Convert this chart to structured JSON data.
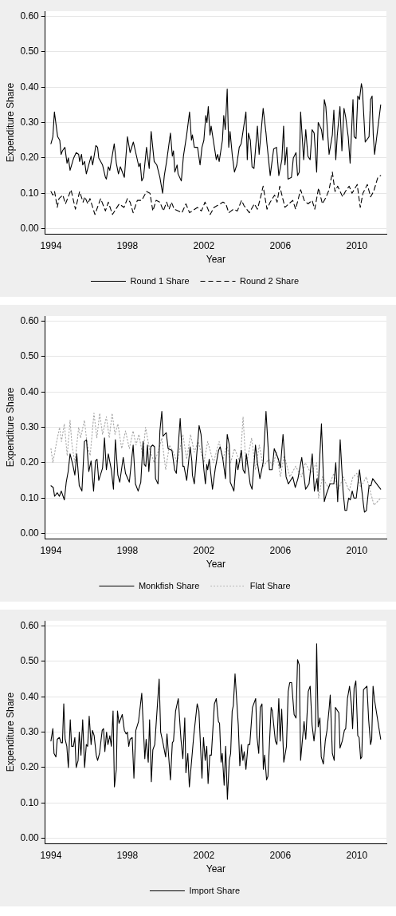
{
  "chart_data": [
    {
      "type": "line",
      "xlabel": "Year",
      "ylabel": "Expenditure Share",
      "legend": "bottom",
      "grid": "y",
      "marker": "none",
      "xlim": [
        1993.7,
        2011.55
      ],
      "xticks": [
        1994,
        1998,
        2002,
        2006,
        2010
      ],
      "ylim": [
        -0.015,
        0.615
      ],
      "yticks": [
        {
          "value": 0,
          "label": "0.00"
        },
        {
          "value": 0.1,
          "label": "0.10"
        },
        {
          "value": 0.2,
          "label": "0.20"
        },
        {
          "value": 0.3,
          "label": "0.30"
        },
        {
          "value": 0.4,
          "label": "0.40"
        },
        {
          "value": 0.5,
          "label": "0.50"
        },
        {
          "value": 0.6,
          "label": "0.60"
        }
      ],
      "series": [
        {
          "name": "Round 1 Share",
          "color": "#000000",
          "line_style": "solid",
          "x": [
            1994.0,
            1994.1,
            1994.18,
            1994.35,
            1994.46,
            1994.53,
            1994.6,
            1994.73,
            1994.84,
            1994.91,
            1995.0,
            1995.19,
            1995.32,
            1995.45,
            1995.5,
            1995.6,
            1995.66,
            1995.76,
            1995.85,
            1996.1,
            1996.18,
            1996.35,
            1996.44,
            1996.5,
            1996.7,
            1996.85,
            1996.9,
            1997.0,
            1997.08,
            1997.31,
            1997.42,
            1997.53,
            1997.63,
            1997.84,
            1998.0,
            1998.14,
            1998.31,
            1998.6,
            1998.67,
            1998.75,
            1998.84,
            1999.0,
            1999.14,
            1999.24,
            1999.4,
            1999.54,
            1999.7,
            1999.84,
            1999.93,
            2000.05,
            2000.25,
            2000.35,
            2000.41,
            2000.48,
            2000.6,
            2000.65,
            2000.82,
            2000.93,
            2001.1,
            2001.25,
            2001.35,
            2001.4,
            2001.5,
            2001.67,
            2001.8,
            2001.9,
            2002.0,
            2002.1,
            2002.16,
            2002.23,
            2002.32,
            2002.38,
            2002.65,
            2002.72,
            2002.8,
            2002.97,
            2003.04,
            2003.12,
            2003.22,
            2003.3,
            2003.37,
            2003.49,
            2003.6,
            2003.72,
            2003.85,
            2003.95,
            2004.2,
            2004.27,
            2004.33,
            2004.43,
            2004.52,
            2004.62,
            2004.8,
            2004.89,
            2005.1,
            2005.25,
            2005.3,
            2005.47,
            2005.65,
            2005.8,
            2005.92,
            2006.08,
            2006.17,
            2006.24,
            2006.34,
            2006.4,
            2006.58,
            2006.68,
            2006.82,
            2006.9,
            2006.99,
            2007.06,
            2007.22,
            2007.33,
            2007.44,
            2007.56,
            2007.66,
            2007.77,
            2007.9,
            2007.98,
            2008.15,
            2008.23,
            2008.3,
            2008.38,
            2008.55,
            2008.72,
            2008.8,
            2008.9,
            2008.98,
            2009.12,
            2009.22,
            2009.33,
            2009.42,
            2009.55,
            2009.65,
            2009.8,
            2009.86,
            2009.96,
            2010.05,
            2010.14,
            2010.24,
            2010.29,
            2010.44,
            2010.64,
            2010.72,
            2010.8,
            2010.86,
            2010.93,
            2011.25
          ],
          "values": [
            0.24,
            0.26,
            0.33,
            0.26,
            0.25,
            0.21,
            0.22,
            0.23,
            0.185,
            0.2,
            0.165,
            0.2,
            0.215,
            0.21,
            0.19,
            0.21,
            0.18,
            0.19,
            0.155,
            0.205,
            0.18,
            0.235,
            0.23,
            0.2,
            0.18,
            0.145,
            0.14,
            0.175,
            0.165,
            0.24,
            0.185,
            0.155,
            0.175,
            0.145,
            0.26,
            0.215,
            0.245,
            0.175,
            0.185,
            0.135,
            0.145,
            0.23,
            0.17,
            0.275,
            0.19,
            0.18,
            0.145,
            0.1,
            0.15,
            0.19,
            0.27,
            0.205,
            0.22,
            0.16,
            0.18,
            0.155,
            0.135,
            0.205,
            0.265,
            0.33,
            0.25,
            0.265,
            0.23,
            0.23,
            0.18,
            0.23,
            0.25,
            0.32,
            0.3,
            0.345,
            0.265,
            0.29,
            0.195,
            0.21,
            0.19,
            0.25,
            0.32,
            0.28,
            0.395,
            0.23,
            0.275,
            0.205,
            0.16,
            0.18,
            0.23,
            0.24,
            0.33,
            0.195,
            0.27,
            0.25,
            0.175,
            0.17,
            0.29,
            0.21,
            0.34,
            0.27,
            0.24,
            0.15,
            0.225,
            0.23,
            0.15,
            0.195,
            0.29,
            0.18,
            0.23,
            0.14,
            0.145,
            0.2,
            0.215,
            0.15,
            0.16,
            0.33,
            0.195,
            0.28,
            0.205,
            0.195,
            0.28,
            0.27,
            0.16,
            0.3,
            0.28,
            0.25,
            0.365,
            0.345,
            0.21,
            0.265,
            0.335,
            0.195,
            0.265,
            0.345,
            0.22,
            0.34,
            0.315,
            0.26,
            0.185,
            0.365,
            0.26,
            0.255,
            0.375,
            0.365,
            0.41,
            0.395,
            0.245,
            0.26,
            0.365,
            0.375,
            0.265,
            0.21,
            0.35
          ]
        },
        {
          "name": "Round 2 Share",
          "color": "#000000",
          "line_style": "dashed",
          "x": [
            1994.0,
            1994.1,
            1994.19,
            1994.33,
            1994.42,
            1994.62,
            1994.76,
            1995.05,
            1995.28,
            1995.5,
            1995.68,
            1995.77,
            1995.93,
            1996.04,
            1996.3,
            1996.6,
            1996.85,
            1997.0,
            1997.22,
            1997.57,
            1997.82,
            1998.0,
            1998.14,
            1998.3,
            1998.52,
            1998.75,
            1999.0,
            1999.18,
            1999.33,
            1999.5,
            1999.7,
            1999.88,
            2000.05,
            2000.18,
            2000.3,
            2000.45,
            2000.85,
            2001.06,
            2001.25,
            2001.66,
            2001.87,
            2002.06,
            2002.33,
            2002.53,
            2003.0,
            2003.15,
            2003.3,
            2003.55,
            2003.75,
            2003.97,
            2004.1,
            2004.38,
            2004.64,
            2004.8,
            2004.95,
            2005.1,
            2005.3,
            2005.47,
            2005.7,
            2005.83,
            2005.97,
            2006.24,
            2006.44,
            2006.65,
            2006.8,
            2007.06,
            2007.25,
            2007.45,
            2007.66,
            2007.8,
            2008.0,
            2008.2,
            2008.4,
            2008.55,
            2008.72,
            2008.86,
            2009.0,
            2009.26,
            2009.4,
            2009.6,
            2009.75,
            2010.02,
            2010.18,
            2010.32,
            2010.55,
            2010.72,
            2010.88,
            2011.1,
            2011.25
          ],
          "values": [
            0.105,
            0.095,
            0.105,
            0.06,
            0.085,
            0.095,
            0.07,
            0.11,
            0.055,
            0.105,
            0.075,
            0.09,
            0.07,
            0.085,
            0.04,
            0.085,
            0.05,
            0.075,
            0.04,
            0.07,
            0.06,
            0.085,
            0.075,
            0.045,
            0.08,
            0.08,
            0.105,
            0.1,
            0.05,
            0.08,
            0.075,
            0.05,
            0.075,
            0.055,
            0.075,
            0.055,
            0.045,
            0.07,
            0.045,
            0.06,
            0.05,
            0.075,
            0.04,
            0.06,
            0.075,
            0.07,
            0.045,
            0.055,
            0.05,
            0.08,
            0.065,
            0.045,
            0.07,
            0.055,
            0.085,
            0.12,
            0.055,
            0.075,
            0.095,
            0.075,
            0.12,
            0.06,
            0.07,
            0.08,
            0.055,
            0.11,
            0.08,
            0.07,
            0.08,
            0.055,
            0.115,
            0.07,
            0.09,
            0.11,
            0.16,
            0.105,
            0.12,
            0.09,
            0.105,
            0.12,
            0.1,
            0.125,
            0.06,
            0.1,
            0.125,
            0.09,
            0.105,
            0.145,
            0.15
          ]
        }
      ]
    },
    {
      "type": "line",
      "xlabel": "Year",
      "ylabel": "Expenditure Share",
      "legend": "bottom",
      "grid": "y",
      "marker": "none",
      "xlim": [
        1993.7,
        2011.55
      ],
      "xticks": [
        1994,
        1998,
        2002,
        2006,
        2010
      ],
      "ylim": [
        -0.015,
        0.615
      ],
      "yticks": [
        {
          "value": 0,
          "label": "0.00"
        },
        {
          "value": 0.1,
          "label": "0.10"
        },
        {
          "value": 0.2,
          "label": "0.20"
        },
        {
          "value": 0.3,
          "label": "0.30"
        },
        {
          "value": 0.4,
          "label": "0.40"
        },
        {
          "value": 0.5,
          "label": "0.50"
        },
        {
          "value": 0.6,
          "label": "0.60"
        }
      ],
      "series": [
        {
          "name": "Monkfish Share",
          "color": "#000000",
          "line_style": "solid",
          "x": [
            1994.0,
            1994.12,
            1994.19,
            1994.33,
            1994.44,
            1994.54,
            1994.7,
            1994.8,
            1994.9,
            1995.0,
            1995.14,
            1995.25,
            1995.35,
            1995.48,
            1995.62,
            1995.75,
            1995.86,
            1995.98,
            1996.1,
            1996.23,
            1996.33,
            1996.41,
            1996.5,
            1996.7,
            1996.8,
            1996.9,
            1997.0,
            1997.16,
            1997.27,
            1997.37,
            1997.5,
            1997.6,
            1997.78,
            1997.9,
            1998.1,
            1998.3,
            1998.42,
            1998.56,
            1998.7,
            1998.82,
            1998.88,
            1998.96,
            1999.05,
            1999.12,
            1999.22,
            1999.32,
            1999.42,
            1999.47,
            1999.6,
            1999.7,
            1999.8,
            1999.86,
            2000.03,
            2000.13,
            2000.33,
            2000.47,
            2000.56,
            2000.76,
            2000.9,
            2000.96,
            2001.1,
            2001.28,
            2001.37,
            2001.4,
            2001.5,
            2001.75,
            2001.85,
            2002.0,
            2002.08,
            2002.15,
            2002.2,
            2002.28,
            2002.45,
            2002.6,
            2002.77,
            2002.85,
            2002.98,
            2003.13,
            2003.22,
            2003.33,
            2003.38,
            2003.57,
            2003.7,
            2003.78,
            2003.96,
            2004.05,
            2004.15,
            2004.22,
            2004.42,
            2004.52,
            2004.7,
            2004.8,
            2004.93,
            2005.1,
            2005.25,
            2005.43,
            2005.57,
            2005.68,
            2005.9,
            2006.0,
            2006.14,
            2006.3,
            2006.42,
            2006.65,
            2006.78,
            2006.92,
            2007.12,
            2007.32,
            2007.5,
            2007.67,
            2007.78,
            2007.92,
            2007.97,
            2008.15,
            2008.3,
            2008.4,
            2008.6,
            2008.8,
            2008.9,
            2009.0,
            2009.13,
            2009.28,
            2009.38,
            2009.47,
            2009.57,
            2009.66,
            2009.76,
            2009.85,
            2009.97,
            2010.14,
            2010.34,
            2010.4,
            2010.5,
            2010.64,
            2010.74,
            2010.83,
            2011.25
          ],
          "values": [
            0.135,
            0.13,
            0.105,
            0.115,
            0.105,
            0.12,
            0.095,
            0.145,
            0.175,
            0.225,
            0.195,
            0.165,
            0.225,
            0.135,
            0.12,
            0.26,
            0.265,
            0.175,
            0.205,
            0.12,
            0.205,
            0.21,
            0.15,
            0.185,
            0.27,
            0.18,
            0.225,
            0.18,
            0.125,
            0.265,
            0.165,
            0.145,
            0.215,
            0.17,
            0.145,
            0.25,
            0.14,
            0.12,
            0.145,
            0.26,
            0.195,
            0.19,
            0.25,
            0.175,
            0.245,
            0.25,
            0.245,
            0.155,
            0.14,
            0.29,
            0.345,
            0.275,
            0.285,
            0.24,
            0.235,
            0.18,
            0.17,
            0.325,
            0.19,
            0.19,
            0.15,
            0.245,
            0.205,
            0.165,
            0.14,
            0.305,
            0.28,
            0.18,
            0.14,
            0.195,
            0.18,
            0.21,
            0.125,
            0.185,
            0.235,
            0.245,
            0.215,
            0.155,
            0.28,
            0.25,
            0.145,
            0.12,
            0.21,
            0.18,
            0.235,
            0.18,
            0.17,
            0.225,
            0.14,
            0.125,
            0.25,
            0.2,
            0.155,
            0.2,
            0.345,
            0.18,
            0.18,
            0.24,
            0.21,
            0.185,
            0.28,
            0.16,
            0.14,
            0.16,
            0.13,
            0.155,
            0.215,
            0.125,
            0.14,
            0.225,
            0.12,
            0.155,
            0.12,
            0.31,
            0.09,
            0.11,
            0.14,
            0.14,
            0.2,
            0.09,
            0.265,
            0.12,
            0.065,
            0.065,
            0.1,
            0.095,
            0.12,
            0.1,
            0.1,
            0.18,
            0.085,
            0.06,
            0.065,
            0.135,
            0.135,
            0.155,
            0.125
          ]
        },
        {
          "name": "Flat Share",
          "color": "#a8a8a8",
          "line_style": "dotted",
          "x": [
            1994.0,
            1994.1,
            1994.3,
            1994.45,
            1994.55,
            1994.7,
            1994.85,
            1995.0,
            1995.1,
            1995.25,
            1995.45,
            1995.55,
            1995.75,
            1995.9,
            1996.05,
            1996.25,
            1996.4,
            1996.55,
            1996.7,
            1996.9,
            1997.05,
            1997.2,
            1997.35,
            1997.5,
            1997.7,
            1997.9,
            1998.1,
            1998.3,
            1998.45,
            1998.6,
            1998.8,
            1998.95,
            1999.15,
            1999.4,
            1999.6,
            1999.8,
            2000.0,
            2000.2,
            2000.4,
            2000.6,
            2000.9,
            2001.1,
            2001.3,
            2001.5,
            2001.7,
            2002.0,
            2002.2,
            2002.5,
            2002.8,
            2003.0,
            2003.2,
            2003.4,
            2003.6,
            2003.9,
            2004.05,
            2004.2,
            2004.5,
            2004.7,
            2004.9,
            2005.1,
            2005.4,
            2005.6,
            2005.8,
            2006.0,
            2006.2,
            2006.5,
            2006.8,
            2007.1,
            2007.3,
            2007.6,
            2007.9,
            2008.0,
            2008.2,
            2008.5,
            2008.8,
            2009.0,
            2009.3,
            2009.6,
            2009.8,
            2010.0,
            2010.2,
            2010.5,
            2010.7,
            2010.9,
            2011.25
          ],
          "values": [
            0.24,
            0.2,
            0.26,
            0.3,
            0.26,
            0.31,
            0.22,
            0.32,
            0.25,
            0.2,
            0.3,
            0.27,
            0.32,
            0.25,
            0.22,
            0.34,
            0.27,
            0.34,
            0.28,
            0.33,
            0.27,
            0.34,
            0.28,
            0.31,
            0.24,
            0.29,
            0.24,
            0.29,
            0.25,
            0.28,
            0.22,
            0.3,
            0.24,
            0.2,
            0.23,
            0.27,
            0.18,
            0.25,
            0.23,
            0.2,
            0.28,
            0.21,
            0.28,
            0.23,
            0.26,
            0.2,
            0.26,
            0.2,
            0.26,
            0.21,
            0.25,
            0.2,
            0.24,
            0.2,
            0.33,
            0.19,
            0.27,
            0.18,
            0.25,
            0.19,
            0.21,
            0.19,
            0.23,
            0.16,
            0.22,
            0.16,
            0.19,
            0.16,
            0.2,
            0.17,
            0.2,
            0.1,
            0.16,
            0.13,
            0.17,
            0.12,
            0.16,
            0.12,
            0.16,
            0.17,
            0.13,
            0.16,
            0.12,
            0.08,
            0.1
          ]
        }
      ]
    },
    {
      "type": "line",
      "xlabel": "Year",
      "ylabel": "Expenditure Share",
      "legend": "bottom",
      "grid": "y",
      "marker": "none",
      "xlim": [
        1993.7,
        2011.55
      ],
      "xticks": [
        1994,
        1998,
        2002,
        2006,
        2010
      ],
      "ylim": [
        -0.015,
        0.615
      ],
      "yticks": [
        {
          "value": 0,
          "label": "0.00"
        },
        {
          "value": 0.1,
          "label": "0.10"
        },
        {
          "value": 0.2,
          "label": "0.20"
        },
        {
          "value": 0.3,
          "label": "0.30"
        },
        {
          "value": 0.4,
          "label": "0.40"
        },
        {
          "value": 0.5,
          "label": "0.50"
        },
        {
          "value": 0.6,
          "label": "0.60"
        }
      ],
      "series": [
        {
          "name": "Import Share",
          "color": "#000000",
          "line_style": "solid",
          "x": [
            1994.0,
            1994.1,
            1994.16,
            1994.26,
            1994.33,
            1994.44,
            1994.53,
            1994.6,
            1994.67,
            1994.74,
            1994.83,
            1994.91,
            1995.01,
            1995.08,
            1995.17,
            1995.25,
            1995.32,
            1995.42,
            1995.48,
            1995.57,
            1995.66,
            1995.76,
            1995.85,
            1995.92,
            1996.0,
            1996.1,
            1996.17,
            1996.26,
            1996.37,
            1996.44,
            1996.54,
            1996.68,
            1996.75,
            1996.82,
            1996.91,
            1996.98,
            1997.08,
            1997.16,
            1997.25,
            1997.32,
            1997.42,
            1997.48,
            1997.56,
            1997.73,
            1997.84,
            1997.93,
            1998.0,
            1998.07,
            1998.14,
            1998.25,
            1998.34,
            1998.44,
            1998.58,
            1998.75,
            1998.91,
            1998.98,
            1999.09,
            1999.16,
            1999.25,
            1999.33,
            1999.43,
            1999.66,
            1999.74,
            1999.84,
            2000.0,
            2000.07,
            2000.25,
            2000.35,
            2000.41,
            2000.52,
            2000.66,
            2000.8,
            2000.9,
            2001.0,
            2001.06,
            2001.16,
            2001.24,
            2001.47,
            2001.65,
            2001.74,
            2001.9,
            2001.98,
            2002.07,
            2002.15,
            2002.22,
            2002.31,
            2002.39,
            2002.55,
            2002.65,
            2002.76,
            2002.82,
            2002.9,
            2002.96,
            2003.06,
            2003.14,
            2003.23,
            2003.33,
            2003.4,
            2003.48,
            2003.54,
            2003.63,
            2003.8,
            2003.88,
            2003.97,
            2004.04,
            2004.11,
            2004.2,
            2004.31,
            2004.4,
            2004.54,
            2004.71,
            2004.78,
            2004.87,
            2004.95,
            2005.04,
            2005.11,
            2005.18,
            2005.28,
            2005.35,
            2005.52,
            2005.58,
            2005.74,
            2005.82,
            2005.92,
            2005.99,
            2006.07,
            2006.18,
            2006.32,
            2006.41,
            2006.49,
            2006.59,
            2006.72,
            2006.82,
            2006.9,
            2006.99,
            2007.06,
            2007.24,
            2007.33,
            2007.46,
            2007.56,
            2007.66,
            2007.76,
            2007.84,
            2007.9,
            2007.98,
            2008.07,
            2008.14,
            2008.25,
            2008.35,
            2008.44,
            2008.55,
            2008.61,
            2008.72,
            2008.82,
            2008.88,
            2009.06,
            2009.12,
            2009.24,
            2009.35,
            2009.42,
            2009.51,
            2009.62,
            2009.72,
            2009.78,
            2009.86,
            2009.95,
            2010.05,
            2010.12,
            2010.2,
            2010.26,
            2010.35,
            2010.53,
            2010.62,
            2010.72,
            2010.78,
            2010.85,
            2010.93,
            2011.25
          ],
          "values": [
            0.275,
            0.31,
            0.24,
            0.23,
            0.28,
            0.285,
            0.27,
            0.27,
            0.38,
            0.28,
            0.26,
            0.2,
            0.335,
            0.26,
            0.26,
            0.285,
            0.2,
            0.22,
            0.3,
            0.235,
            0.335,
            0.2,
            0.265,
            0.26,
            0.345,
            0.265,
            0.305,
            0.29,
            0.235,
            0.22,
            0.24,
            0.305,
            0.31,
            0.245,
            0.3,
            0.265,
            0.29,
            0.26,
            0.36,
            0.145,
            0.195,
            0.36,
            0.325,
            0.35,
            0.305,
            0.295,
            0.3,
            0.26,
            0.28,
            0.285,
            0.17,
            0.305,
            0.33,
            0.41,
            0.225,
            0.28,
            0.215,
            0.335,
            0.16,
            0.25,
            0.265,
            0.45,
            0.3,
            0.275,
            0.23,
            0.295,
            0.165,
            0.27,
            0.275,
            0.36,
            0.395,
            0.28,
            0.225,
            0.34,
            0.185,
            0.24,
            0.145,
            0.29,
            0.38,
            0.36,
            0.17,
            0.285,
            0.22,
            0.26,
            0.155,
            0.235,
            0.235,
            0.38,
            0.395,
            0.33,
            0.325,
            0.215,
            0.24,
            0.15,
            0.26,
            0.11,
            0.22,
            0.24,
            0.36,
            0.375,
            0.465,
            0.32,
            0.205,
            0.265,
            0.22,
            0.245,
            0.195,
            0.265,
            0.265,
            0.37,
            0.395,
            0.285,
            0.24,
            0.37,
            0.38,
            0.195,
            0.235,
            0.165,
            0.175,
            0.37,
            0.36,
            0.275,
            0.265,
            0.395,
            0.275,
            0.365,
            0.215,
            0.26,
            0.415,
            0.44,
            0.44,
            0.35,
            0.34,
            0.505,
            0.49,
            0.22,
            0.33,
            0.28,
            0.415,
            0.43,
            0.32,
            0.275,
            0.315,
            0.55,
            0.315,
            0.34,
            0.23,
            0.21,
            0.275,
            0.305,
            0.365,
            0.405,
            0.24,
            0.22,
            0.37,
            0.355,
            0.255,
            0.275,
            0.305,
            0.31,
            0.395,
            0.43,
            0.375,
            0.31,
            0.425,
            0.445,
            0.29,
            0.285,
            0.225,
            0.23,
            0.42,
            0.43,
            0.335,
            0.265,
            0.28,
            0.43,
            0.39,
            0.28
          ]
        }
      ]
    }
  ]
}
